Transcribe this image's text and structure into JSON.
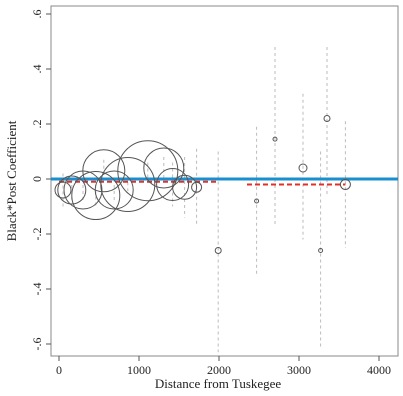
{
  "chart_data": {
    "type": "scatter",
    "title": "",
    "xlabel": "Distance from Tuskegee",
    "ylabel": "Black*Post Coefficient",
    "xlim": [
      -100,
      4100
    ],
    "ylim": [
      -0.65,
      0.6
    ],
    "xticks": [
      0,
      1000,
      2000,
      3000,
      4000
    ],
    "xtick_labels": [
      "0",
      "1000",
      "2000",
      "3000",
      "4000"
    ],
    "yticks": [
      -0.6,
      -0.4,
      -0.2,
      0,
      0.2,
      0.4,
      0.6
    ],
    "ytick_labels": [
      "-.6",
      "-.4",
      "-.2",
      "0",
      ".2",
      ".4",
      ".6"
    ],
    "grid": false,
    "reference_line": {
      "y": 0,
      "color": "#1a8fd0"
    },
    "points": [
      {
        "x": 50,
        "y": -0.04,
        "size": 8,
        "ci": [
          -0.1,
          0.02
        ]
      },
      {
        "x": 160,
        "y": -0.04,
        "size": 14,
        "ci": [
          -0.08,
          0.0
        ]
      },
      {
        "x": 300,
        "y": -0.04,
        "size": 19,
        "ci": [
          -0.08,
          0.0
        ]
      },
      {
        "x": 460,
        "y": -0.06,
        "size": 24,
        "ci": [
          -0.1,
          -0.02
        ]
      },
      {
        "x": 560,
        "y": 0.03,
        "size": 21,
        "ci": [
          -0.01,
          0.07
        ]
      },
      {
        "x": 690,
        "y": -0.04,
        "size": 19,
        "ci": [
          -0.08,
          0.0
        ]
      },
      {
        "x": 860,
        "y": -0.02,
        "size": 27,
        "ci": [
          -0.05,
          0.01
        ]
      },
      {
        "x": 1110,
        "y": 0.03,
        "size": 30,
        "ci": [
          0.0,
          0.06
        ]
      },
      {
        "x": 1310,
        "y": 0.04,
        "size": 20,
        "ci": [
          0.0,
          0.08
        ]
      },
      {
        "x": 1420,
        "y": -0.02,
        "size": 16,
        "ci": [
          -0.1,
          0.06
        ]
      },
      {
        "x": 1570,
        "y": -0.03,
        "size": 12,
        "ci": [
          -0.14,
          0.08
        ]
      },
      {
        "x": 1720,
        "y": -0.03,
        "size": 5,
        "ci": [
          -0.17,
          0.11
        ]
      },
      {
        "x": 1990,
        "y": -0.26,
        "size": 3,
        "ci": [
          -0.63,
          0.1
        ]
      },
      {
        "x": 2470,
        "y": -0.08,
        "size": 2,
        "ci": [
          -0.35,
          0.19
        ]
      },
      {
        "x": 2700,
        "y": 0.145,
        "size": 2,
        "ci": [
          -0.17,
          0.48
        ]
      },
      {
        "x": 3050,
        "y": 0.04,
        "size": 4,
        "ci": [
          -0.22,
          0.31
        ]
      },
      {
        "x": 3270,
        "y": -0.26,
        "size": 2,
        "ci": [
          -0.62,
          0.1
        ]
      },
      {
        "x": 3350,
        "y": 0.22,
        "size": 3,
        "ci": [
          -0.06,
          0.48
        ]
      },
      {
        "x": 3580,
        "y": -0.02,
        "size": 5,
        "ci": [
          -0.25,
          0.21
        ]
      }
    ],
    "fit_lines": [
      {
        "x": [
          0,
          2000
        ],
        "y": [
          -0.01,
          -0.01
        ],
        "color": "#e0302a",
        "style": "dashed"
      },
      {
        "x": [
          2350,
          3580
        ],
        "y": [
          -0.02,
          -0.02
        ],
        "color": "#e0302a",
        "style": "dashed"
      }
    ]
  }
}
